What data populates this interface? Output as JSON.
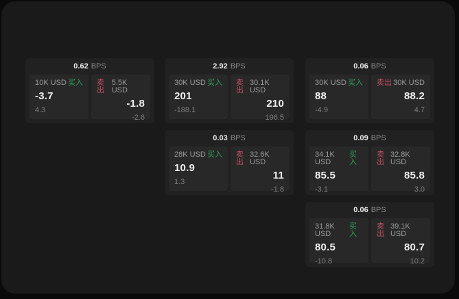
{
  "labels": {
    "bps_unit": "BPS",
    "buy": "买入",
    "sell": "卖出"
  },
  "colors": {
    "buy_green": "#2da35e",
    "sell_red": "#c25064",
    "panel_bg": "#1a1a1a",
    "card_bg": "#212121",
    "tile_bg": "#282828"
  },
  "cards": [
    {
      "bps": "0.62",
      "buy": {
        "size": "10K USD",
        "value": "-3.7",
        "sub": "4.3"
      },
      "sell": {
        "size": "5.5K USD",
        "value": "-1.8",
        "sub": "-2.6"
      }
    },
    {
      "bps": "2.92",
      "buy": {
        "size": "30K USD",
        "value": "201",
        "sub": "-188.1"
      },
      "sell": {
        "size": "30.1K USD",
        "value": "210",
        "sub": "196.5"
      }
    },
    {
      "bps": "0.06",
      "buy": {
        "size": "30K USD",
        "value": "88",
        "sub": "-4.9"
      },
      "sell": {
        "size": "30K USD",
        "value": "88.2",
        "sub": "4.7"
      }
    },
    {
      "bps": "0.03",
      "buy": {
        "size": "28K USD",
        "value": "10.9",
        "sub": "1.3"
      },
      "sell": {
        "size": "32.6K USD",
        "value": "11",
        "sub": "-1.8"
      }
    },
    {
      "bps": "0.09",
      "buy": {
        "size": "34.1K USD",
        "value": "85.5",
        "sub": "-3.1"
      },
      "sell": {
        "size": "32.8K USD",
        "value": "85.8",
        "sub": "3.0"
      }
    },
    {
      "bps": "0.06",
      "buy": {
        "size": "31.8K USD",
        "value": "80.5",
        "sub": "-10.8"
      },
      "sell": {
        "size": "39.1K USD",
        "value": "80.7",
        "sub": "10.2"
      }
    }
  ]
}
